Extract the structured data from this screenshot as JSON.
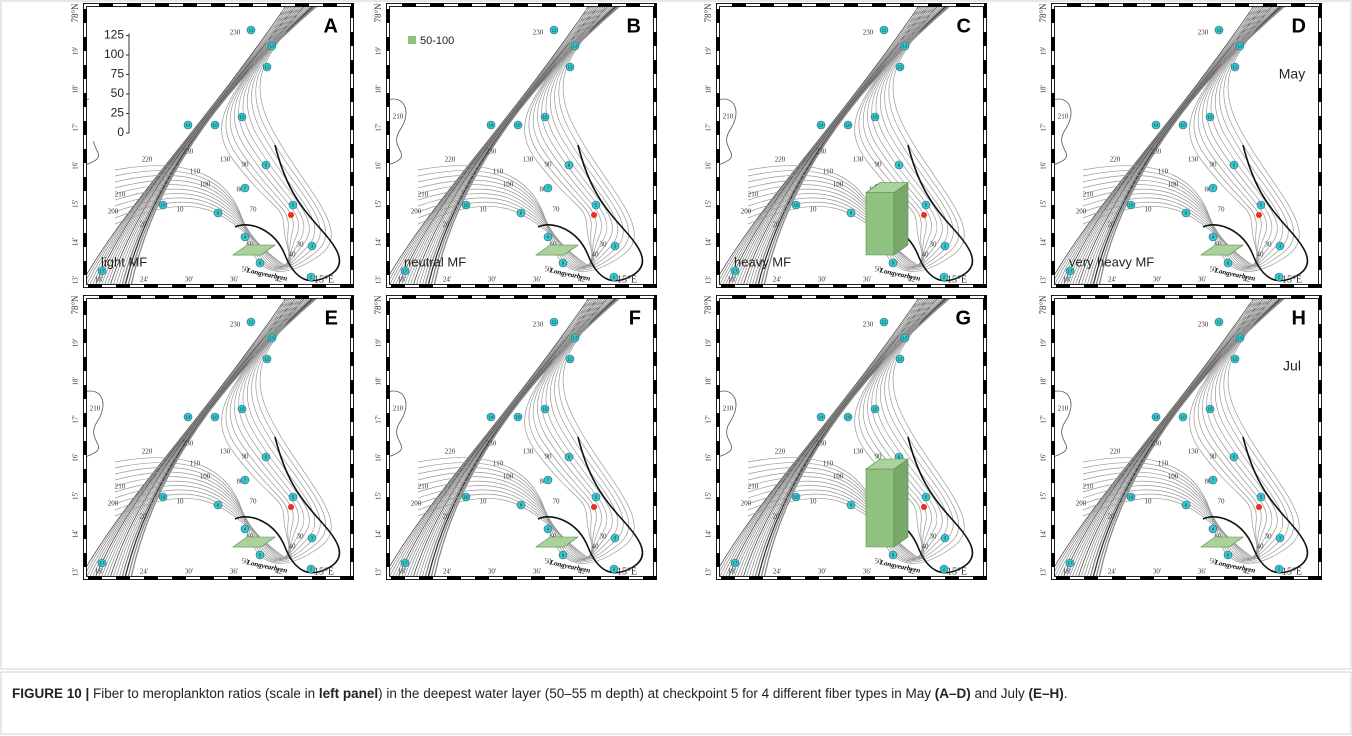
{
  "scale": {
    "ticks": [
      0,
      25,
      50,
      75,
      100,
      125
    ]
  },
  "legend": {
    "label": "50-100",
    "color": "#8fc27f"
  },
  "map": {
    "lat_labels": [
      "78°N",
      "19'",
      "18'",
      "17'",
      "16'",
      "15'",
      "14'",
      "13'"
    ],
    "lon_labels": [
      "18'",
      "24'",
      "30'",
      "36'",
      "42'",
      "15°E"
    ],
    "place": "Longyearbyen",
    "contour_labels": [
      "230",
      "230",
      "220",
      "210",
      "210",
      "200",
      "130",
      "110",
      "100",
      "90",
      "80",
      "70",
      "60",
      "50",
      "40",
      "30",
      "20",
      "10"
    ],
    "station_labels": [
      "11",
      "12",
      "13",
      "14",
      "10",
      "15",
      "6",
      "7",
      "16",
      "8",
      "5",
      "4",
      "3",
      "2",
      "17",
      "9"
    ]
  },
  "panels": [
    {
      "letter": "A",
      "label": "light MF",
      "ratio": 0
    },
    {
      "letter": "B",
      "label": "neutral MF",
      "ratio": 0
    },
    {
      "letter": "C",
      "label": "heavy MF",
      "ratio": 80
    },
    {
      "letter": "D",
      "label": "very heavy MF",
      "month": "May",
      "ratio": 0
    },
    {
      "letter": "E",
      "ratio": 0
    },
    {
      "letter": "F",
      "ratio": 0
    },
    {
      "letter": "G",
      "ratio": 100
    },
    {
      "letter": "H",
      "month": "Jul",
      "ratio": 0
    }
  ],
  "caption": {
    "figure": "FIGURE 10 |",
    "parts": [
      {
        "text": " Fiber to meroplankton ratios (scale in ",
        "bold": false
      },
      {
        "text": "left panel",
        "bold": true
      },
      {
        "text": ") in the deepest water layer (50–55 m depth) at checkpoint 5 for 4 different fiber types in May ",
        "bold": false
      },
      {
        "text": "(A–D)",
        "bold": true
      },
      {
        "text": " and July ",
        "bold": false
      },
      {
        "text": "(E–H)",
        "bold": true
      },
      {
        "text": ".",
        "bold": false
      }
    ]
  }
}
